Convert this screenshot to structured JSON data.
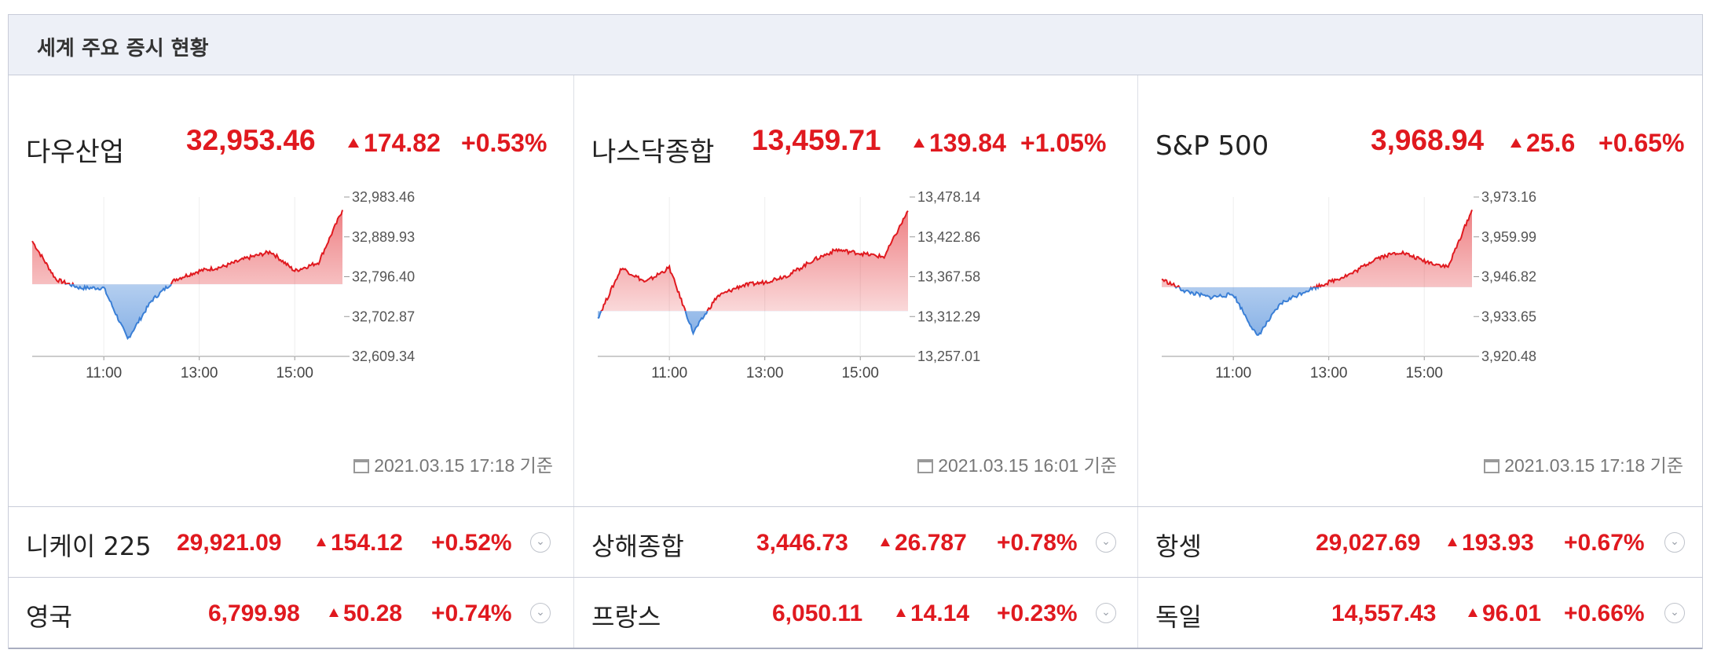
{
  "header": {
    "title": "세계 주요 증시 현황"
  },
  "colors": {
    "up": "#e0191f",
    "down": "#3a7fd6"
  },
  "indices": [
    {
      "name": "다우산업",
      "value": "32,953.46",
      "change": "174.82",
      "pct": "+0.53%",
      "timestamp": "2021.03.15 17:18 기준",
      "y_labels": [
        "32,983.46",
        "32,889.93",
        "32,796.40",
        "32,702.87",
        "32,609.34"
      ],
      "x_labels": [
        "11:00",
        "13:00",
        "15:00"
      ]
    },
    {
      "name": "나스닥종합",
      "value": "13,459.71",
      "change": "139.84",
      "pct": "+1.05%",
      "timestamp": "2021.03.15 16:01 기준",
      "y_labels": [
        "13,478.14",
        "13,422.86",
        "13,367.58",
        "13,312.29",
        "13,257.01"
      ],
      "x_labels": [
        "11:00",
        "13:00",
        "15:00"
      ]
    },
    {
      "name": "S&P 500",
      "value": "3,968.94",
      "change": "25.6",
      "pct": "+0.65%",
      "timestamp": "2021.03.15 17:18 기준",
      "y_labels": [
        "3,973.16",
        "3,959.99",
        "3,946.82",
        "3,933.65",
        "3,920.48"
      ],
      "x_labels": [
        "11:00",
        "13:00",
        "15:00"
      ]
    }
  ],
  "rows": [
    [
      {
        "name": "니케이 225",
        "value": "29,921.09",
        "change": "154.12",
        "pct": "+0.52%"
      },
      {
        "name": "상해종합",
        "value": "3,446.73",
        "change": "26.787",
        "pct": "+0.78%"
      },
      {
        "name": "항셍",
        "value": "29,027.69",
        "change": "193.93",
        "pct": "+0.67%"
      }
    ],
    [
      {
        "name": "영국",
        "value": "6,799.98",
        "change": "50.28",
        "pct": "+0.74%"
      },
      {
        "name": "프랑스",
        "value": "6,050.11",
        "change": "14.14",
        "pct": "+0.23%"
      },
      {
        "name": "독일",
        "value": "14,557.43",
        "change": "96.01",
        "pct": "+0.66%"
      }
    ]
  ],
  "chart_data": [
    {
      "type": "area",
      "title": "다우산업",
      "x": [
        "09:30",
        "10:00",
        "10:30",
        "11:00",
        "11:30",
        "12:00",
        "12:30",
        "13:00",
        "13:30",
        "14:00",
        "14:30",
        "15:00",
        "15:30",
        "16:00"
      ],
      "y": [
        32880,
        32790,
        32770,
        32770,
        32650,
        32740,
        32790,
        32810,
        32820,
        32840,
        32855,
        32810,
        32830,
        32953
      ],
      "baseline": 32778.64,
      "ylim": [
        32609.34,
        32983.46
      ]
    },
    {
      "type": "area",
      "title": "나스닥종합",
      "x": [
        "09:30",
        "10:00",
        "10:30",
        "11:00",
        "11:30",
        "12:00",
        "12:30",
        "13:00",
        "13:30",
        "14:00",
        "14:30",
        "15:00",
        "15:30",
        "16:00"
      ],
      "y": [
        13310,
        13380,
        13360,
        13380,
        13290,
        13340,
        13355,
        13360,
        13370,
        13390,
        13405,
        13400,
        13395,
        13459
      ],
      "baseline": 13319.87,
      "ylim": [
        13257.01,
        13478.14
      ]
    },
    {
      "type": "area",
      "title": "S&P 500",
      "x": [
        "09:30",
        "10:00",
        "10:30",
        "11:00",
        "11:30",
        "12:00",
        "12:30",
        "13:00",
        "13:30",
        "14:00",
        "14:30",
        "15:00",
        "15:30",
        "16:00"
      ],
      "y": [
        3946,
        3942,
        3940,
        3941,
        3927,
        3938,
        3942,
        3945,
        3948,
        3953,
        3955,
        3952,
        3950,
        3968.94
      ],
      "baseline": 3943.34,
      "ylim": [
        3920.48,
        3973.16
      ]
    }
  ]
}
